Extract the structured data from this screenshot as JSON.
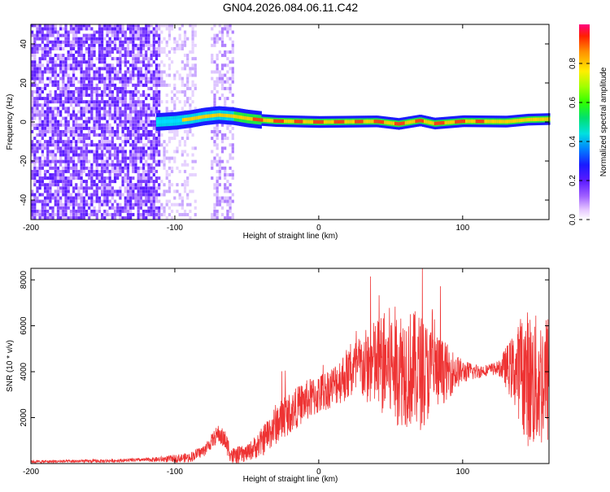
{
  "title": "GN04.2026.084.06.11.C42",
  "chart_data": [
    {
      "type": "heatmap",
      "name": "spectrogram",
      "xlabel": "Height of straight line (km)",
      "ylabel": "Frequency (Hz)",
      "xlim": [
        -200,
        160
      ],
      "ylim": [
        -50,
        50
      ],
      "xticks": [
        -200,
        -100,
        0,
        100
      ],
      "yticks": [
        -40,
        -20,
        0,
        20,
        40
      ],
      "ridge_center_hz": [
        [
          -113,
          0
        ],
        [
          -100,
          0.6
        ],
        [
          -90,
          1.5
        ],
        [
          -80,
          2.8
        ],
        [
          -70,
          3.6
        ],
        [
          -60,
          3.0
        ],
        [
          -50,
          1.8
        ],
        [
          -40,
          1.0
        ],
        [
          -30,
          0.5
        ],
        [
          0,
          0
        ],
        [
          40,
          0.3
        ],
        [
          55,
          -1.0
        ],
        [
          70,
          0.8
        ],
        [
          80,
          -0.8
        ],
        [
          100,
          0.4
        ],
        [
          130,
          0.2
        ],
        [
          145,
          1.2
        ],
        [
          160,
          1.5
        ]
      ],
      "noise_region_km": [
        -200,
        -95
      ],
      "noise_band_km": [
        -75,
        -60
      ],
      "colorbar": {
        "label": "Normalized spectral amplitude",
        "range": [
          0,
          1
        ],
        "ticks": [
          0.0,
          0.2,
          0.4,
          0.6,
          0.8
        ]
      }
    },
    {
      "type": "line",
      "name": "snr",
      "xlabel": "Height of straight line (km)",
      "ylabel": "SNR (10 * v/v)",
      "xlim": [
        -200,
        160
      ],
      "ylim": [
        0,
        8500
      ],
      "xticks": [
        -200,
        -100,
        0,
        100
      ],
      "yticks": [
        2000,
        4000,
        6000,
        8000
      ],
      "color": "#ee3333",
      "envelope": [
        [
          -200,
          80
        ],
        [
          -150,
          110
        ],
        [
          -110,
          180
        ],
        [
          -90,
          260
        ],
        [
          -80,
          550
        ],
        [
          -70,
          1300
        ],
        [
          -65,
          1000
        ],
        [
          -60,
          300
        ],
        [
          -50,
          450
        ],
        [
          -40,
          900
        ],
        [
          -30,
          1700
        ],
        [
          -20,
          2200
        ],
        [
          -10,
          2700
        ],
        [
          0,
          3000
        ],
        [
          10,
          3400
        ],
        [
          20,
          3900
        ],
        [
          30,
          4200
        ],
        [
          40,
          4300
        ],
        [
          50,
          4300
        ],
        [
          60,
          4200
        ],
        [
          70,
          4000
        ],
        [
          80,
          4000
        ],
        [
          90,
          4000
        ],
        [
          100,
          4000
        ],
        [
          110,
          4000
        ],
        [
          120,
          4100
        ],
        [
          130,
          4200
        ],
        [
          140,
          4000
        ],
        [
          150,
          3500
        ],
        [
          160,
          3700
        ]
      ],
      "spread": [
        [
          -200,
          60
        ],
        [
          -120,
          80
        ],
        [
          -80,
          260
        ],
        [
          -65,
          450
        ],
        [
          -50,
          350
        ],
        [
          -30,
          900
        ],
        [
          -10,
          900
        ],
        [
          10,
          900
        ],
        [
          30,
          1500
        ],
        [
          50,
          2600
        ],
        [
          70,
          2600
        ],
        [
          85,
          1500
        ],
        [
          100,
          500
        ],
        [
          115,
          250
        ],
        [
          125,
          300
        ],
        [
          135,
          1500
        ],
        [
          145,
          3000
        ],
        [
          160,
          3000
        ]
      ]
    }
  ]
}
